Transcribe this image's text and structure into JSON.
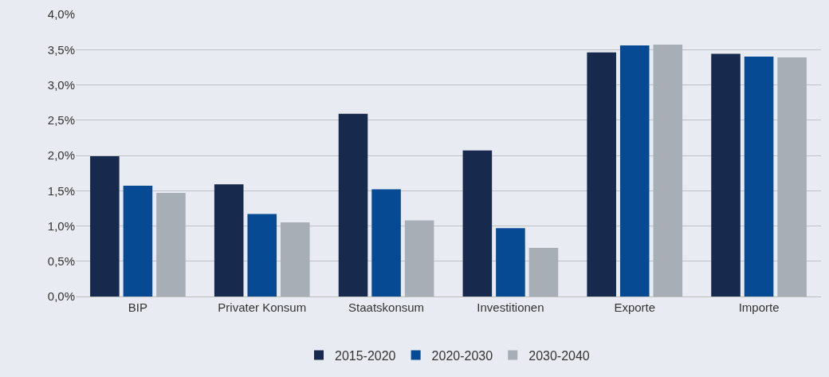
{
  "chart_data": {
    "type": "bar",
    "categories": [
      "BIP",
      "Privater Konsum",
      "Staatskonsum",
      "Investitionen",
      "Exporte",
      "Importe"
    ],
    "series": [
      {
        "name": "2015-2020",
        "color": "#172a4d",
        "values": [
          1.99,
          1.59,
          2.59,
          2.07,
          3.46,
          3.44
        ]
      },
      {
        "name": "2020-2030",
        "color": "#064a94",
        "values": [
          1.57,
          1.17,
          1.52,
          0.97,
          3.56,
          3.4
        ]
      },
      {
        "name": "2030-2040",
        "color": "#a8aeb5",
        "values": [
          1.47,
          1.05,
          1.08,
          0.69,
          3.57,
          3.39
        ]
      }
    ],
    "ylim": [
      0,
      4
    ],
    "yticks": [
      {
        "value": 0,
        "label": "0,0%"
      },
      {
        "value": 0.5,
        "label": "0,5%"
      },
      {
        "value": 1,
        "label": "1,0%"
      },
      {
        "value": 1.5,
        "label": "1,5%"
      },
      {
        "value": 2,
        "label": "2,0%"
      },
      {
        "value": 2.5,
        "label": "2,5%"
      },
      {
        "value": 3,
        "label": "3,0%"
      },
      {
        "value": 3.5,
        "label": "3,5%"
      },
      {
        "value": 4,
        "label": "4,0%"
      }
    ],
    "grid": "y",
    "legend": "bottom"
  }
}
